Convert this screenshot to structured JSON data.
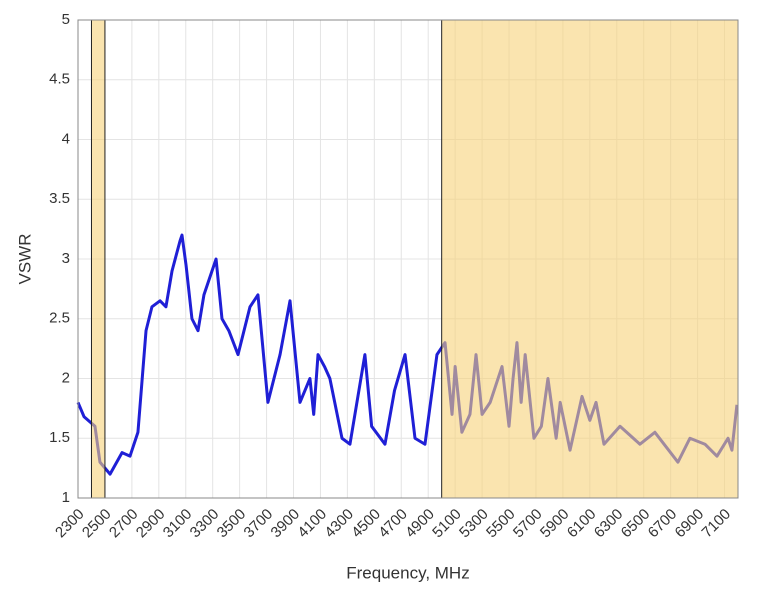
{
  "chart_data": {
    "type": "line",
    "xlabel": "Frequency, MHz",
    "ylabel": "VSWR",
    "xlim": [
      2300,
      7200
    ],
    "ylim": [
      1,
      5
    ],
    "xticks": [
      2300,
      2500,
      2700,
      2900,
      3100,
      3300,
      3500,
      3700,
      3900,
      4100,
      4300,
      4500,
      4700,
      4900,
      5100,
      5300,
      5500,
      5700,
      5900,
      6100,
      6300,
      6500,
      6700,
      6900,
      7100
    ],
    "yticks": [
      1,
      1.5,
      2,
      2.5,
      3,
      3.5,
      4,
      4.5,
      5
    ],
    "grid": true,
    "bands": [
      [
        2400,
        2500
      ],
      [
        5000,
        7200
      ]
    ],
    "band_color": "#f7d27a",
    "x": [
      2300,
      2345,
      2426,
      2463,
      2538,
      2627,
      2686,
      2745,
      2805,
      2849,
      2909,
      2953,
      2998,
      3057,
      3072,
      3102,
      3146,
      3191,
      3235,
      3265,
      3325,
      3369,
      3420,
      3488,
      3577,
      3636,
      3710,
      3800,
      3874,
      3948,
      4022,
      4050,
      4082,
      4130,
      4170,
      4260,
      4319,
      4430,
      4480,
      4579,
      4650,
      4728,
      4802,
      4876,
      4965,
      5025,
      5077,
      5100,
      5150,
      5210,
      5255,
      5300,
      5360,
      5448,
      5500,
      5530,
      5559,
      5590,
      5620,
      5685,
      5740,
      5789,
      5850,
      5880,
      5953,
      6042,
      6100,
      6146,
      6205,
      6324,
      6472,
      6583,
      6754,
      6843,
      6955,
      7044,
      7126,
      7155,
      7192
    ],
    "series": [
      {
        "color": "#1f1fd6",
        "values": [
          1.8,
          1.68,
          1.6,
          1.3,
          1.2,
          1.38,
          1.35,
          1.55,
          2.4,
          2.6,
          2.65,
          2.6,
          2.9,
          3.15,
          3.2,
          2.95,
          2.5,
          2.4,
          2.7,
          2.8,
          3.0,
          2.5,
          2.4,
          2.2,
          2.6,
          2.7,
          1.8,
          2.2,
          2.65,
          1.8,
          2.0,
          1.7,
          2.2,
          2.1,
          2.0,
          1.5,
          1.45,
          2.2,
          1.6,
          1.45,
          1.9,
          2.2,
          1.5,
          1.45,
          2.2,
          2.3,
          1.7,
          2.1,
          1.55,
          1.7,
          2.2,
          1.7,
          1.8,
          2.1,
          1.6,
          2.0,
          2.3,
          1.8,
          2.2,
          1.5,
          1.6,
          2.0,
          1.5,
          1.8,
          1.4,
          1.85,
          1.65,
          1.8,
          1.45,
          1.6,
          1.45,
          1.55,
          1.3,
          1.5,
          1.45,
          1.35,
          1.5,
          1.4,
          1.78
        ]
      }
    ]
  }
}
